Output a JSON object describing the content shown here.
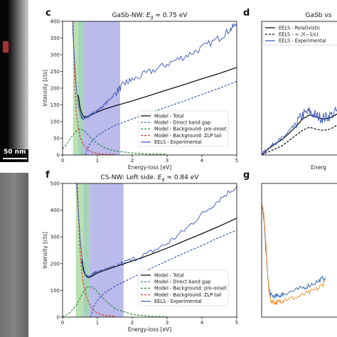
{
  "image": {
    "panel_labels": [
      "c",
      "d",
      "f",
      "g"
    ],
    "scale_bar_label": "50 nm"
  },
  "chart_data": [
    {
      "type": "line",
      "panel": "c",
      "title": "GaSb-NW: E_g ≈ 0.75 eV",
      "title_parts": {
        "pre": "GaSb-NW: ",
        "var": "E",
        "sub": "g",
        "post": " ≈ 0.75 eV"
      },
      "xlabel": "Energy-loss [eV]",
      "ylabel": "Intensity [cts]",
      "xlim": [
        0,
        5
      ],
      "ylim": [
        0,
        400
      ],
      "xticks": [
        0,
        1,
        2,
        3,
        4,
        5
      ],
      "yticks": [
        0,
        50,
        100,
        150,
        200,
        250,
        300,
        350,
        400
      ],
      "bands": [
        {
          "from": 0.3,
          "to": 0.45,
          "color": "#a9d8a0"
        },
        {
          "from": 0.45,
          "to": 0.6,
          "color": "#8fc7a6"
        },
        {
          "from": 0.6,
          "to": 1.65,
          "color": "#a9a9e6"
        }
      ],
      "legend_position": "lower right",
      "series": [
        {
          "name": "Model - Total",
          "style": "solid",
          "color": "#000000",
          "x": [
            0.45,
            0.5,
            0.55,
            0.6,
            0.7,
            0.8,
            0.9,
            1.0,
            1.2,
            1.5,
            2.0,
            2.5,
            3.0,
            3.5,
            4.0,
            4.5,
            5.0
          ],
          "y": [
            180,
            142,
            124,
            115,
            114,
            119,
            124,
            129,
            137,
            147,
            162,
            178,
            195,
            211,
            228,
            244,
            262
          ]
        },
        {
          "name": "Model - Direct band gap",
          "style": "dashed",
          "color": "#3b5bb0",
          "x": [
            0.65,
            0.75,
            0.85,
            1.0,
            1.2,
            1.5,
            2.0,
            2.5,
            3.0,
            3.5,
            4.0,
            4.5,
            5.0
          ],
          "y": [
            0,
            28,
            42,
            58,
            72,
            88,
            108,
            126,
            144,
            162,
            181,
            200,
            220
          ]
        },
        {
          "name": "Model - Background: pre-onset",
          "style": "dashed",
          "color": "#2e8b3e",
          "x": [
            0.0,
            0.1,
            0.2,
            0.3,
            0.4,
            0.5,
            0.6,
            0.7,
            0.8,
            1.0,
            1.2,
            1.5,
            2.0,
            2.5,
            3.0
          ],
          "y": [
            18,
            30,
            45,
            60,
            72,
            78,
            74,
            64,
            52,
            34,
            22,
            12,
            6,
            3,
            2
          ]
        },
        {
          "name": "Model - Background: ZLP tail",
          "style": "dashed",
          "color": "#d43a2a",
          "x": [
            0.3,
            0.35,
            0.4,
            0.45,
            0.5,
            0.6,
            0.7,
            0.8,
            1.0,
            1.2,
            1.5
          ],
          "y": [
            400,
            210,
            120,
            80,
            55,
            30,
            18,
            10,
            4,
            2,
            1
          ]
        },
        {
          "name": "EELS - Experimental",
          "style": "solid",
          "color": "#3a55b5",
          "x": [
            0.28,
            0.35,
            0.4,
            0.45,
            0.5,
            0.55,
            0.6,
            0.65,
            0.7,
            0.8,
            0.9,
            1.0,
            1.2,
            1.4,
            1.6,
            1.8,
            2.0,
            2.5,
            3.0,
            3.5,
            4.0,
            4.5,
            4.8,
            5.0
          ],
          "y": [
            400,
            270,
            195,
            150,
            125,
            112,
            108,
            110,
            113,
            120,
            127,
            133,
            150,
            172,
            195,
            215,
            225,
            248,
            272,
            295,
            320,
            350,
            375,
            392
          ]
        }
      ]
    },
    {
      "type": "line",
      "panel": "d",
      "title": "GaSb vs",
      "xlabel": "Energ",
      "legend_position": "top-left",
      "series": [
        {
          "name": "EELS - Relativistic",
          "style": "solid",
          "color": "#000000",
          "x": [
            0,
            0.3,
            0.6,
            0.9,
            1.2,
            1.5,
            1.8,
            2.1,
            2.4,
            2.7,
            3.0,
            3.4
          ],
          "y": [
            0,
            12,
            22,
            30,
            42,
            55,
            70,
            78,
            74,
            70,
            72,
            82
          ]
        },
        {
          "name": "EELS - ≈ ℑ(−1/ε)",
          "style": "dashed",
          "color": "#000000",
          "x": [
            0,
            0.3,
            0.6,
            0.9,
            1.2,
            1.5,
            1.8,
            2.1,
            2.4,
            2.7,
            3.0,
            3.4
          ],
          "y": [
            0,
            6,
            12,
            18,
            28,
            38,
            48,
            54,
            50,
            48,
            50,
            60
          ]
        },
        {
          "name": "EELS - Experimental",
          "style": "solid",
          "color": "#3a55b5",
          "x": [
            0,
            0.3,
            0.6,
            0.9,
            1.2,
            1.5,
            1.8,
            2.1,
            2.4,
            2.7,
            3.0,
            3.4
          ],
          "y": [
            0,
            14,
            24,
            32,
            46,
            60,
            78,
            84,
            76,
            72,
            76,
            88
          ]
        }
      ]
    },
    {
      "type": "line",
      "panel": "f",
      "title": "CS-NW: Left side. E_g ≈ 0.84 eV",
      "title_parts": {
        "pre": "CS-NW: Left side. ",
        "var": "E",
        "sub": "g",
        "post": " ≈ 0.84 eV"
      },
      "xlabel": "Energy-loss [eV]",
      "ylabel": "Intensity [cts]",
      "xlim": [
        0,
        5
      ],
      "ylim": [
        0,
        500
      ],
      "xticks": [
        0,
        1,
        2,
        3,
        4,
        5
      ],
      "yticks": [
        0,
        100,
        200,
        300,
        400,
        500
      ],
      "bands": [
        {
          "from": 0.38,
          "to": 0.6,
          "color": "#a9d8a0"
        },
        {
          "from": 0.6,
          "to": 0.78,
          "color": "#8fc7a6"
        },
        {
          "from": 0.78,
          "to": 1.75,
          "color": "#a9a9e6"
        }
      ],
      "legend_position": "lower right",
      "series": [
        {
          "name": "Model - Total",
          "style": "solid",
          "color": "#000000",
          "x": [
            0.55,
            0.6,
            0.65,
            0.7,
            0.75,
            0.8,
            0.9,
            1.0,
            1.2,
            1.5,
            2.0,
            2.5,
            3.0,
            3.5,
            4.0,
            4.5,
            5.0
          ],
          "y": [
            215,
            175,
            158,
            150,
            148,
            150,
            158,
            165,
            175,
            188,
            210,
            233,
            258,
            285,
            312,
            340,
            370
          ]
        },
        {
          "name": "Model - Direct band gap",
          "style": "dashed",
          "color": "#3b5bb0",
          "x": [
            0.8,
            0.9,
            1.0,
            1.2,
            1.5,
            2.0,
            2.5,
            3.0,
            3.5,
            4.0,
            4.5,
            5.0
          ],
          "y": [
            0,
            40,
            62,
            90,
            115,
            148,
            180,
            210,
            240,
            268,
            298,
            325
          ]
        },
        {
          "name": "Model - Background: pre-onset",
          "style": "dashed",
          "color": "#2e8b3e",
          "x": [
            0.0,
            0.2,
            0.4,
            0.5,
            0.6,
            0.7,
            0.8,
            0.9,
            1.0,
            1.2,
            1.5,
            2.0,
            2.5,
            3.0
          ],
          "y": [
            0,
            15,
            45,
            70,
            95,
            112,
            115,
            108,
            95,
            65,
            32,
            10,
            3,
            1
          ]
        },
        {
          "name": "Model - Background: ZLP tail",
          "style": "dashed",
          "color": "#d43a2a",
          "x": [
            0.42,
            0.5,
            0.55,
            0.6,
            0.7,
            0.8,
            0.9,
            1.0,
            1.2,
            1.5
          ],
          "y": [
            500,
            250,
            170,
            120,
            70,
            42,
            25,
            15,
            6,
            2
          ]
        },
        {
          "name": "EELS - Experimental",
          "style": "solid",
          "color": "#3a55b5",
          "x": [
            0.4,
            0.45,
            0.5,
            0.55,
            0.6,
            0.65,
            0.7,
            0.75,
            0.8,
            0.9,
            1.0,
            1.2,
            1.5,
            2.0,
            2.5,
            3.0,
            3.5,
            4.0,
            4.5,
            5.0
          ],
          "y": [
            500,
            400,
            300,
            230,
            185,
            162,
            152,
            150,
            155,
            165,
            170,
            178,
            190,
            215,
            240,
            275,
            325,
            385,
            440,
            490
          ]
        }
      ]
    },
    {
      "type": "line",
      "panel": "g",
      "series": [
        {
          "name": "blue",
          "style": "solid",
          "color": "#2b63ad",
          "x": [
            0,
            0.1,
            0.2,
            0.3,
            0.4,
            0.6,
            0.8,
            1.0,
            1.5,
            2.0,
            2.5,
            2.8
          ],
          "y": [
            220,
            190,
            120,
            60,
            42,
            40,
            42,
            46,
            52,
            60,
            70,
            78
          ]
        },
        {
          "name": "orange",
          "style": "solid",
          "color": "#ef8a2a",
          "x": [
            0,
            0.1,
            0.2,
            0.3,
            0.4,
            0.6,
            0.8,
            1.0,
            1.5,
            2.0,
            2.5,
            2.8
          ],
          "y": [
            220,
            200,
            130,
            58,
            32,
            28,
            30,
            34,
            38,
            46,
            56,
            70
          ]
        }
      ]
    }
  ]
}
